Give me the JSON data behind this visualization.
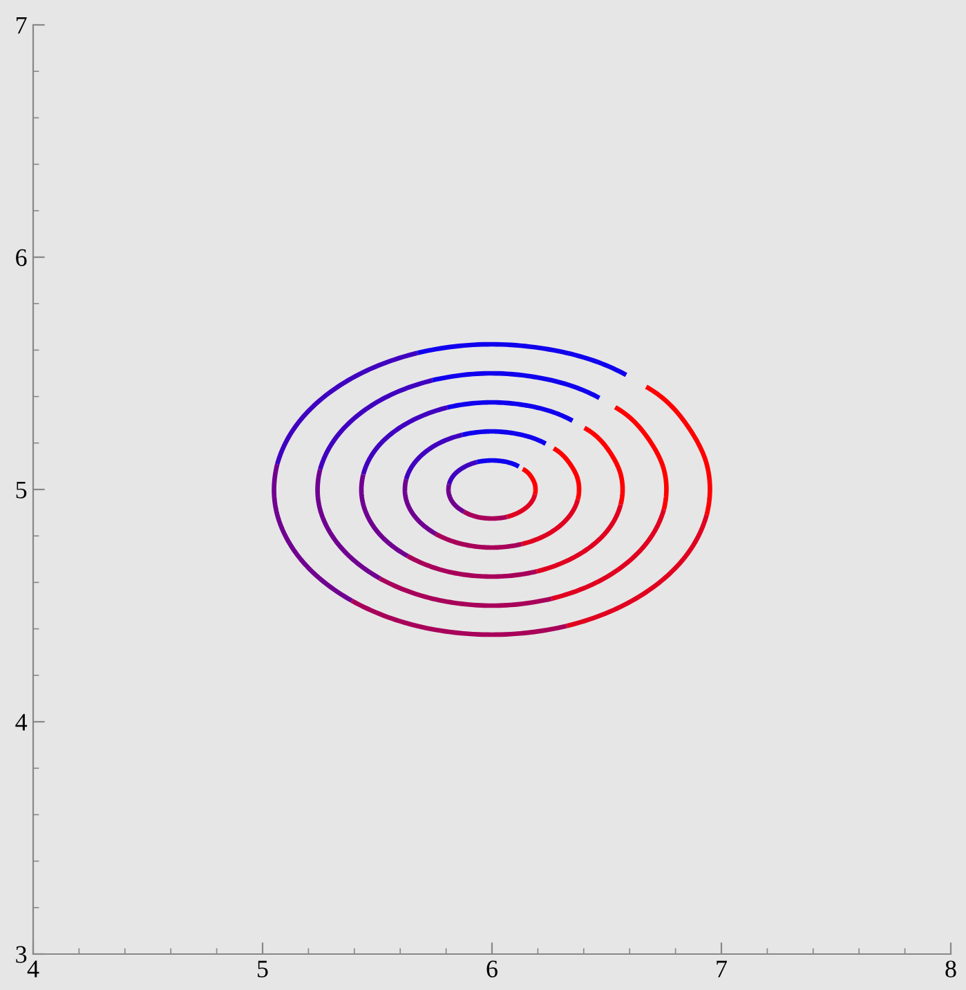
{
  "chart_data": {
    "type": "line",
    "xlim": [
      4,
      8
    ],
    "ylim": [
      3,
      7
    ],
    "xticks": [
      4,
      {
        "value": 4.2,
        "label": null
      },
      {
        "value": 4.4,
        "label": null
      },
      {
        "value": 4.6,
        "label": null
      },
      {
        "value": 4.8,
        "label": null
      },
      5,
      {
        "value": 5.2,
        "label": null
      },
      {
        "value": 5.4,
        "label": null
      },
      {
        "value": 5.6,
        "label": null
      },
      {
        "value": 5.8,
        "label": null
      },
      6,
      {
        "value": 6.2,
        "label": null
      },
      {
        "value": 6.4,
        "label": null
      },
      {
        "value": 6.6,
        "label": null
      },
      {
        "value": 6.8,
        "label": null
      },
      7,
      {
        "value": 7.2,
        "label": null
      },
      {
        "value": 7.4,
        "label": null
      },
      {
        "value": 7.6,
        "label": null
      },
      {
        "value": 7.8,
        "label": null
      },
      8
    ],
    "yticks": [
      3,
      {
        "value": 3.2,
        "label": null
      },
      {
        "value": 3.4,
        "label": null
      },
      {
        "value": 3.6,
        "label": null
      },
      {
        "value": 3.8,
        "label": null
      },
      4,
      {
        "value": 4.2,
        "label": null
      },
      {
        "value": 4.4,
        "label": null
      },
      {
        "value": 4.6,
        "label": null
      },
      {
        "value": 4.8,
        "label": null
      },
      5,
      {
        "value": 5.2,
        "label": null
      },
      {
        "value": 5.4,
        "label": null
      },
      {
        "value": 5.6,
        "label": null
      },
      {
        "value": 5.8,
        "label": null
      },
      6,
      {
        "value": 6.2,
        "label": null
      },
      {
        "value": 6.4,
        "label": null
      },
      {
        "value": 6.6,
        "label": null
      },
      {
        "value": 6.8,
        "label": null
      },
      7
    ],
    "grid": false,
    "marker": "none",
    "line_style": "solid",
    "series": [
      {
        "color": "#1000ee",
        "x": [
          6.117,
          6.065,
          6.0,
          5.935
        ],
        "values": [
          5.099,
          5.118,
          5.125,
          5.118
        ]
      },
      {
        "color": "#4000c0",
        "x": [
          5.935,
          5.878,
          5.835,
          5.813
        ],
        "values": [
          5.118,
          5.096,
          5.063,
          5.022
        ]
      },
      {
        "color": "#700090",
        "x": [
          5.813,
          5.813,
          5.835,
          5.878
        ],
        "values": [
          5.022,
          4.978,
          4.937,
          4.904
        ]
      },
      {
        "color": "#a8005a",
        "x": [
          5.878,
          5.935,
          6.0,
          6.065
        ],
        "values": [
          4.904,
          4.882,
          4.875,
          4.882
        ]
      },
      {
        "color": "#e0001f",
        "x": [
          6.065,
          6.122,
          6.165,
          6.187
        ],
        "values": [
          4.882,
          4.904,
          4.937,
          4.978
        ]
      },
      {
        "color": "#ff0000",
        "x": [
          6.187,
          6.187,
          6.165,
          6.134
        ],
        "values": [
          4.978,
          5.022,
          5.063,
          5.088
        ]
      },
      {
        "color": "#1000ee",
        "x": [
          6.234,
          6.13,
          6.0,
          5.87
        ],
        "values": [
          5.197,
          5.235,
          5.25,
          5.235
        ]
      },
      {
        "color": "#4000c0",
        "x": [
          5.87,
          5.756,
          5.671,
          5.626
        ],
        "values": [
          5.235,
          5.192,
          5.125,
          5.044
        ]
      },
      {
        "color": "#700090",
        "x": [
          5.626,
          5.626,
          5.671,
          5.756
        ],
        "values": [
          5.044,
          4.956,
          4.875,
          4.808
        ]
      },
      {
        "color": "#a8005a",
        "x": [
          5.756,
          5.87,
          6.0,
          6.13
        ],
        "values": [
          4.808,
          4.765,
          4.75,
          4.765
        ]
      },
      {
        "color": "#e0001f",
        "x": [
          6.13,
          6.244,
          6.329,
          6.374
        ],
        "values": [
          4.765,
          4.808,
          4.875,
          4.956
        ]
      },
      {
        "color": "#ff0000",
        "x": [
          6.374,
          6.374,
          6.329,
          6.269
        ],
        "values": [
          4.956,
          5.044,
          5.125,
          5.177
        ]
      },
      {
        "color": "#1000ee",
        "x": [
          6.351,
          6.195,
          6.0,
          5.805
        ],
        "values": [
          5.296,
          5.353,
          5.375,
          5.353
        ]
      },
      {
        "color": "#4000c0",
        "x": [
          5.805,
          5.633,
          5.506,
          5.439
        ],
        "values": [
          5.353,
          5.287,
          5.188,
          5.065
        ]
      },
      {
        "color": "#700090",
        "x": [
          5.439,
          5.439,
          5.506,
          5.633
        ],
        "values": [
          5.065,
          4.935,
          4.812,
          4.713
        ]
      },
      {
        "color": "#a8005a",
        "x": [
          5.633,
          5.805,
          6.0,
          6.195
        ],
        "values": [
          4.713,
          4.647,
          4.625,
          4.647
        ]
      },
      {
        "color": "#e0001f",
        "x": [
          6.195,
          6.367,
          6.494,
          6.561
        ],
        "values": [
          4.647,
          4.713,
          4.812,
          4.935
        ]
      },
      {
        "color": "#ff0000",
        "x": [
          6.561,
          6.561,
          6.494,
          6.403
        ],
        "values": [
          4.935,
          5.065,
          5.188,
          5.265
        ]
      },
      {
        "color": "#1000ee",
        "x": [
          6.468,
          6.26,
          6.0,
          5.74
        ],
        "values": [
          5.394,
          5.47,
          5.5,
          5.47
        ]
      },
      {
        "color": "#4000c0",
        "x": [
          5.74,
          5.511,
          5.342,
          5.251
        ],
        "values": [
          5.47,
          5.383,
          5.25,
          5.087
        ]
      },
      {
        "color": "#700090",
        "x": [
          5.251,
          5.251,
          5.342,
          5.511
        ],
        "values": [
          5.087,
          4.913,
          4.75,
          4.617
        ]
      },
      {
        "color": "#a8005a",
        "x": [
          5.511,
          5.74,
          6.0,
          6.26
        ],
        "values": [
          4.617,
          4.53,
          4.5,
          4.53
        ]
      },
      {
        "color": "#e0001f",
        "x": [
          6.26,
          6.489,
          6.658,
          6.749
        ],
        "values": [
          4.53,
          4.617,
          4.75,
          4.913
        ]
      },
      {
        "color": "#ff0000",
        "x": [
          6.749,
          6.749,
          6.658,
          6.537
        ],
        "values": [
          4.913,
          5.087,
          5.25,
          5.354
        ]
      },
      {
        "color": "#1000ee",
        "x": [
          6.585,
          6.325,
          6.0,
          5.675
        ],
        "values": [
          5.493,
          5.588,
          5.625,
          5.588
        ]
      },
      {
        "color": "#4000c0",
        "x": [
          5.675,
          5.389,
          5.177,
          5.064
        ],
        "values": [
          5.588,
          5.479,
          5.313,
          5.109
        ]
      },
      {
        "color": "#700090",
        "x": [
          5.064,
          5.064,
          5.177,
          5.389
        ],
        "values": [
          5.109,
          4.891,
          4.687,
          4.521
        ]
      },
      {
        "color": "#a8005a",
        "x": [
          5.389,
          5.675,
          6.0,
          6.325
        ],
        "values": [
          4.521,
          4.412,
          4.375,
          4.412
        ]
      },
      {
        "color": "#e0001f",
        "x": [
          6.325,
          6.611,
          6.823,
          6.936
        ],
        "values": [
          4.412,
          4.521,
          4.687,
          4.891
        ]
      },
      {
        "color": "#ff0000",
        "x": [
          6.936,
          6.936,
          6.823,
          6.672
        ],
        "values": [
          4.891,
          5.109,
          5.313,
          5.442
        ]
      }
    ]
  }
}
